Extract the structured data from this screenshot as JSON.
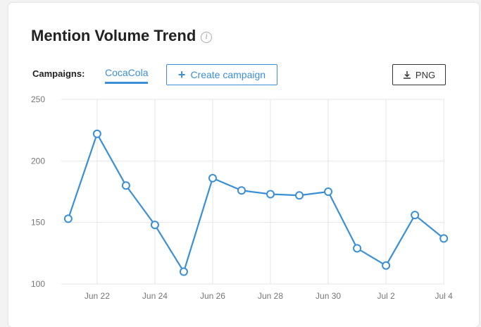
{
  "card": {
    "title": "Mention Volume Trend",
    "info_icon": "info-icon",
    "campaigns_label": "Campaigns:",
    "campaign_tab": "CocaCola",
    "create_button": "Create campaign",
    "png_button": "PNG"
  },
  "colors": {
    "accent": "#3b8fd6",
    "grid": "#e6e6e6"
  },
  "chart_data": {
    "type": "line",
    "title": "Mention Volume Trend",
    "xlabel": "",
    "ylabel": "",
    "ylim": [
      100,
      250
    ],
    "yticks": [
      100,
      150,
      200,
      250
    ],
    "x_tick_labels": [
      "Jun 22",
      "Jun 24",
      "Jun 26",
      "Jun 28",
      "Jun 30",
      "Jul 2",
      "Jul 4"
    ],
    "x_tick_positions": [
      2,
      4,
      6,
      8,
      10,
      12,
      14
    ],
    "grid": true,
    "series": [
      {
        "name": "CocaCola",
        "x": [
          1,
          2,
          3,
          4,
          5,
          6,
          7,
          8,
          9,
          10,
          11,
          12,
          13,
          14
        ],
        "dates": [
          "Jun 21",
          "Jun 22",
          "Jun 23",
          "Jun 24",
          "Jun 25",
          "Jun 26",
          "Jun 27",
          "Jun 28",
          "Jun 29",
          "Jun 30",
          "Jul 1",
          "Jul 2",
          "Jul 3",
          "Jul 4"
        ],
        "values": [
          153,
          222,
          180,
          148,
          110,
          186,
          176,
          173,
          172,
          175,
          129,
          115,
          156,
          137
        ]
      }
    ]
  }
}
